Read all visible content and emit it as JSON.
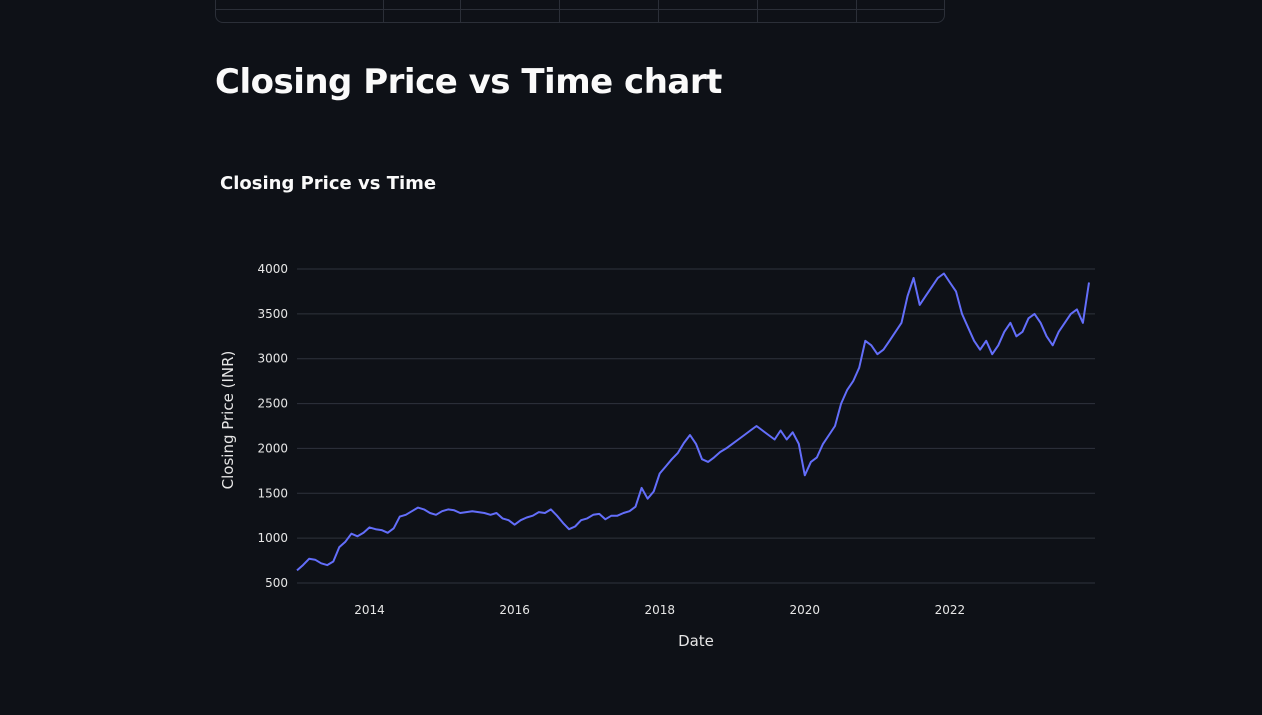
{
  "header": {
    "title": "Closing Price vs Time chart"
  },
  "colors": {
    "background": "#0e1117",
    "series": "#636efa",
    "grid": "#2f333d",
    "text": "#fafafa"
  },
  "chart_data": {
    "type": "line",
    "title": "Closing Price vs Time",
    "xlabel": "Date",
    "ylabel": "Closing Price (INR)",
    "xlim": [
      "2013-01-01",
      "2023-12-31"
    ],
    "ylim": [
      450,
      4000
    ],
    "y_ticks": [
      500,
      1000,
      1500,
      2000,
      2500,
      3000,
      3500,
      4000
    ],
    "x_ticks": [
      "2014",
      "2016",
      "2018",
      "2020",
      "2022"
    ],
    "grid": true,
    "legend": "none",
    "x": [
      "2013-01",
      "2013-02",
      "2013-03",
      "2013-04",
      "2013-05",
      "2013-06",
      "2013-07",
      "2013-08",
      "2013-09",
      "2013-10",
      "2013-11",
      "2013-12",
      "2014-01",
      "2014-02",
      "2014-03",
      "2014-04",
      "2014-05",
      "2014-06",
      "2014-07",
      "2014-08",
      "2014-09",
      "2014-10",
      "2014-11",
      "2014-12",
      "2015-01",
      "2015-02",
      "2015-03",
      "2015-04",
      "2015-05",
      "2015-06",
      "2015-07",
      "2015-08",
      "2015-09",
      "2015-10",
      "2015-11",
      "2015-12",
      "2016-01",
      "2016-02",
      "2016-03",
      "2016-04",
      "2016-05",
      "2016-06",
      "2016-07",
      "2016-08",
      "2016-09",
      "2016-10",
      "2016-11",
      "2016-12",
      "2017-01",
      "2017-02",
      "2017-03",
      "2017-04",
      "2017-05",
      "2017-06",
      "2017-07",
      "2017-08",
      "2017-09",
      "2017-10",
      "2017-11",
      "2017-12",
      "2018-01",
      "2018-02",
      "2018-03",
      "2018-04",
      "2018-05",
      "2018-06",
      "2018-07",
      "2018-08",
      "2018-09",
      "2018-10",
      "2018-11",
      "2018-12",
      "2019-01",
      "2019-02",
      "2019-03",
      "2019-04",
      "2019-05",
      "2019-06",
      "2019-07",
      "2019-08",
      "2019-09",
      "2019-10",
      "2019-11",
      "2019-12",
      "2020-01",
      "2020-02",
      "2020-03",
      "2020-04",
      "2020-05",
      "2020-06",
      "2020-07",
      "2020-08",
      "2020-09",
      "2020-10",
      "2020-11",
      "2020-12",
      "2021-01",
      "2021-02",
      "2021-03",
      "2021-04",
      "2021-05",
      "2021-06",
      "2021-07",
      "2021-08",
      "2021-09",
      "2021-10",
      "2021-11",
      "2021-12",
      "2022-01",
      "2022-02",
      "2022-03",
      "2022-04",
      "2022-05",
      "2022-06",
      "2022-07",
      "2022-08",
      "2022-09",
      "2022-10",
      "2022-11",
      "2022-12",
      "2023-01",
      "2023-02",
      "2023-03",
      "2023-04",
      "2023-05",
      "2023-06",
      "2023-07",
      "2023-08",
      "2023-09",
      "2023-10",
      "2023-11",
      "2023-12"
    ],
    "y": [
      640,
      700,
      770,
      760,
      720,
      700,
      740,
      900,
      960,
      1050,
      1020,
      1060,
      1120,
      1100,
      1090,
      1060,
      1110,
      1240,
      1260,
      1300,
      1340,
      1320,
      1280,
      1260,
      1300,
      1320,
      1310,
      1280,
      1290,
      1300,
      1290,
      1280,
      1260,
      1280,
      1220,
      1200,
      1150,
      1200,
      1230,
      1250,
      1290,
      1280,
      1320,
      1250,
      1170,
      1100,
      1130,
      1200,
      1220,
      1260,
      1270,
      1210,
      1250,
      1250,
      1280,
      1300,
      1350,
      1560,
      1440,
      1520,
      1720,
      1800,
      1880,
      1950,
      2060,
      2150,
      2050,
      1880,
      1850,
      1900,
      1960,
      2000,
      2050,
      2100,
      2150,
      2200,
      2250,
      2200,
      2150,
      2100,
      2200,
      2100,
      2180,
      2050,
      1700,
      1850,
      1900,
      2050,
      2150,
      2250,
      2500,
      2650,
      2750,
      2900,
      3200,
      3150,
      3050,
      3100,
      3200,
      3300,
      3400,
      3700,
      3900,
      3600,
      3700,
      3800,
      3900,
      3950,
      3850,
      3750,
      3500,
      3350,
      3200,
      3100,
      3200,
      3050,
      3150,
      3300,
      3400,
      3250,
      3300,
      3450,
      3500,
      3400,
      3250,
      3150,
      3300,
      3400,
      3500,
      3550,
      3400,
      3850
    ]
  }
}
